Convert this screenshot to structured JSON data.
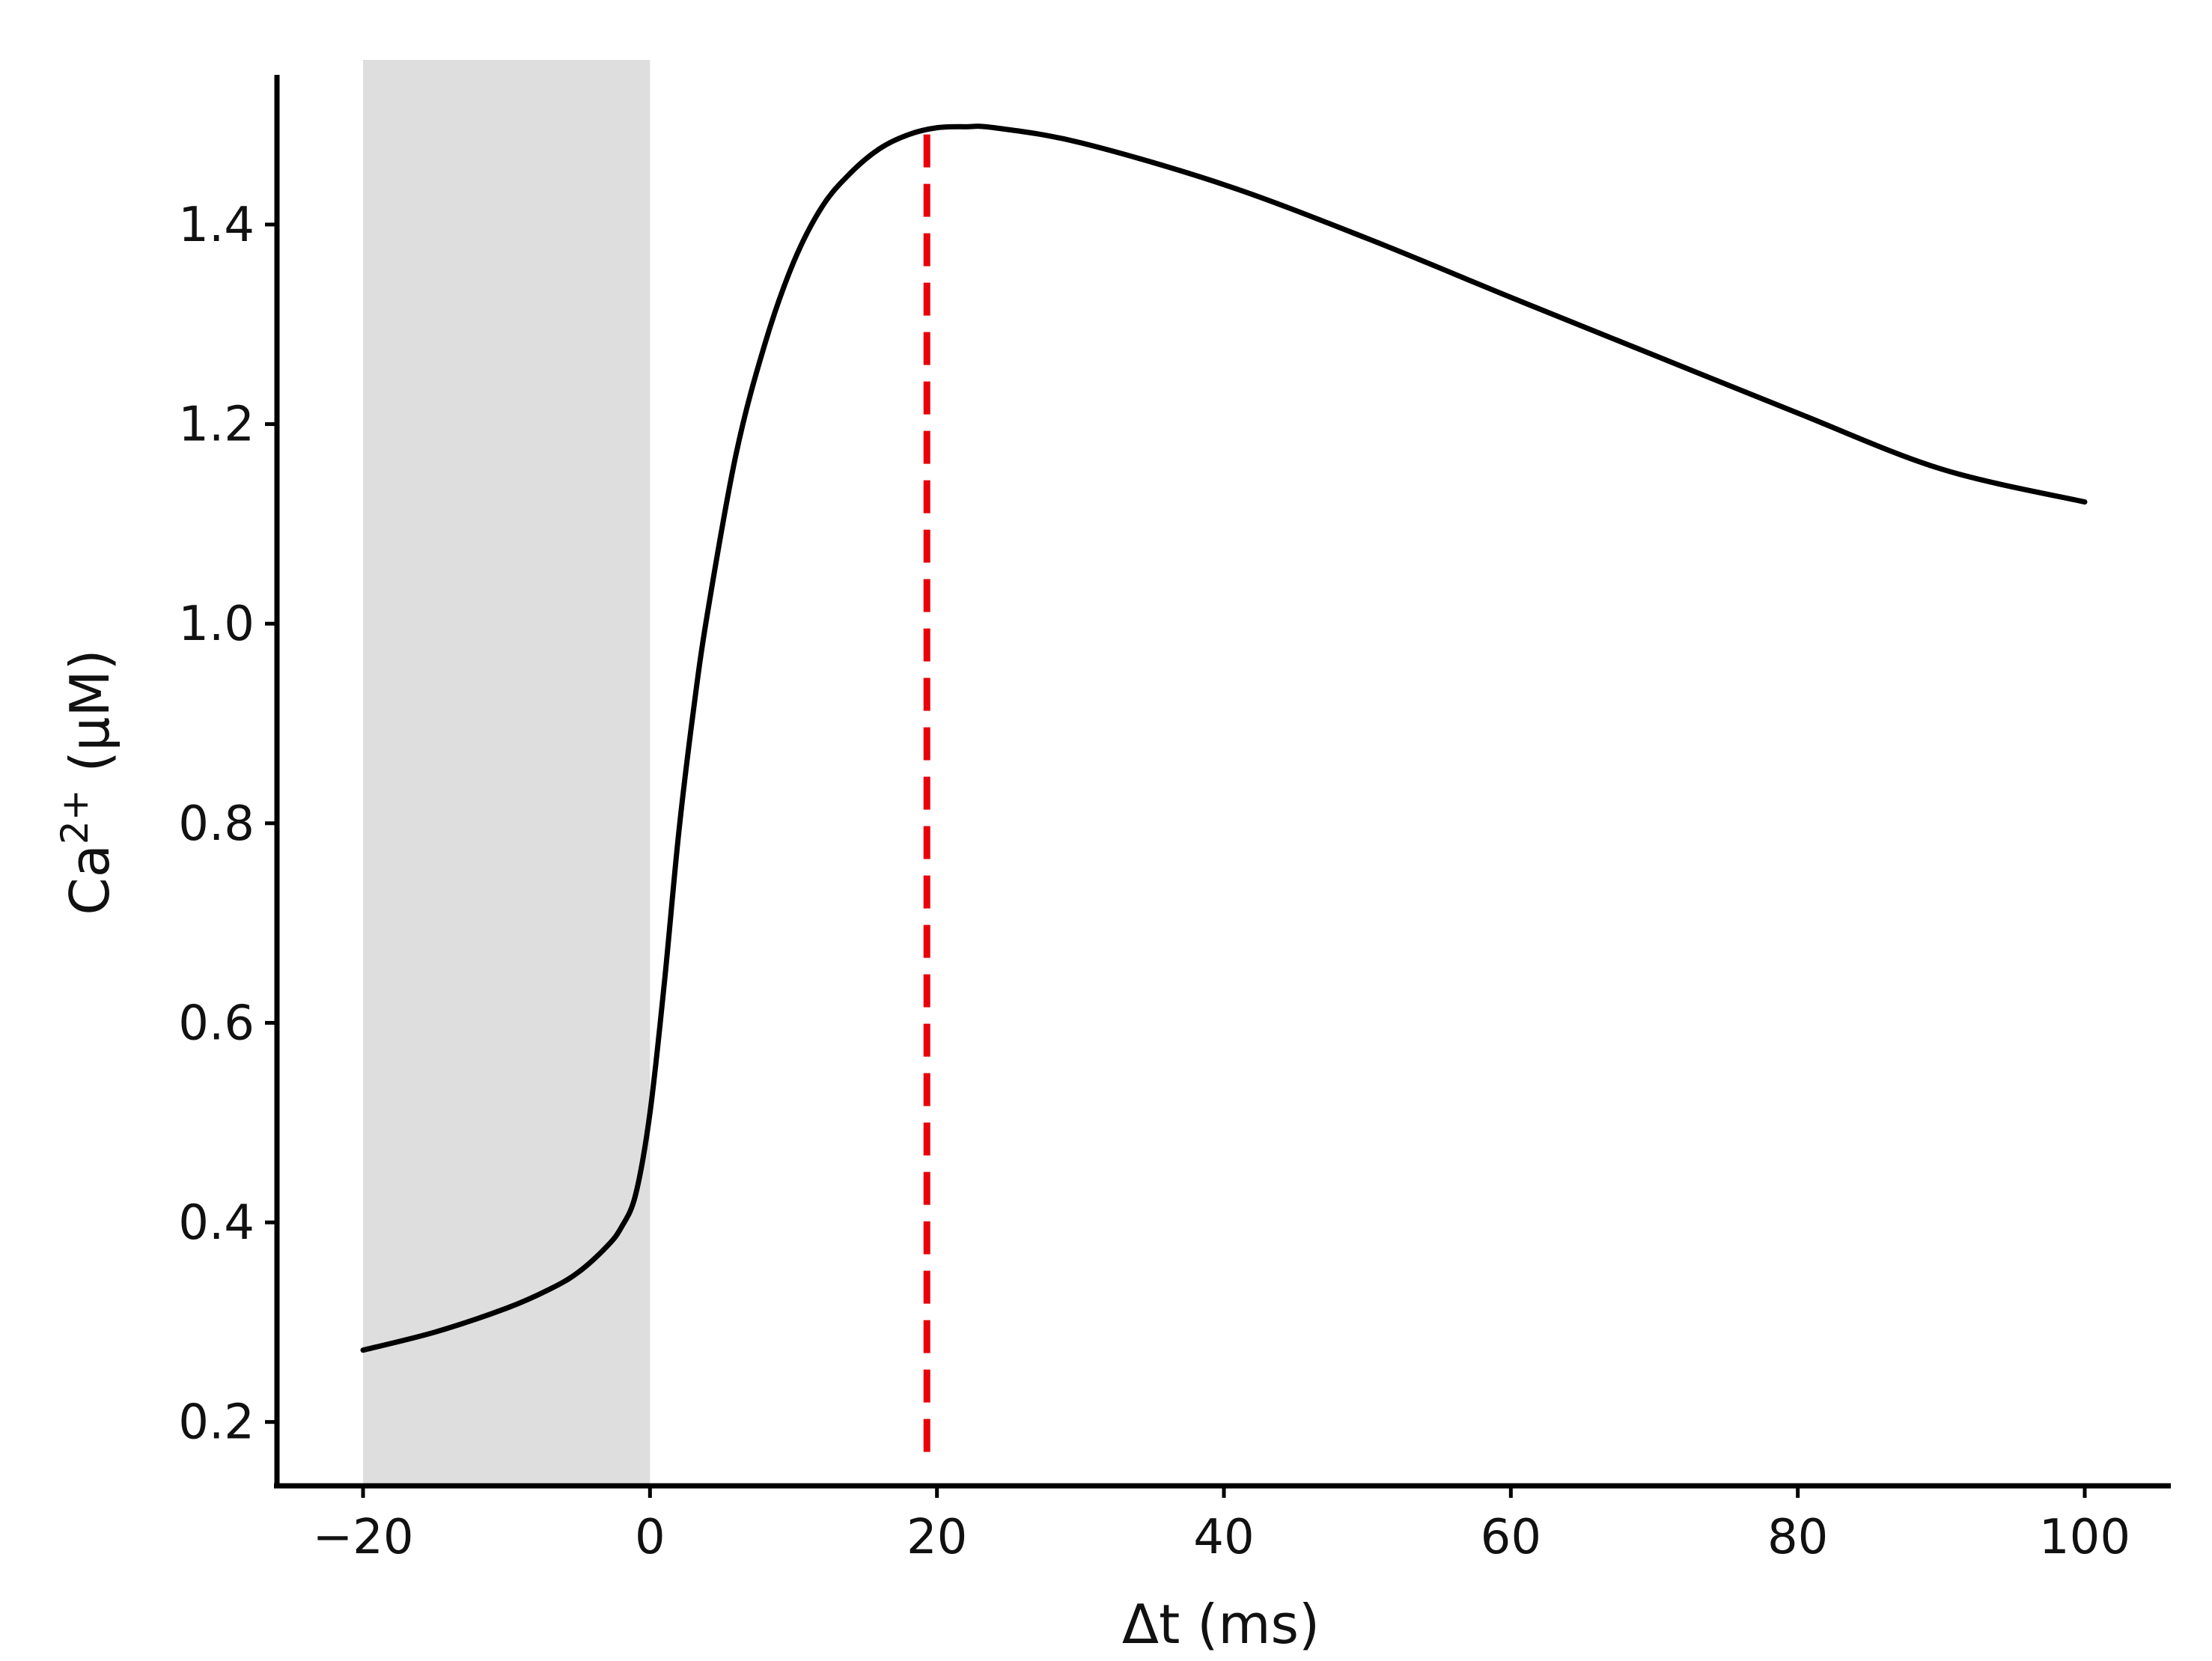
{
  "chart_data": {
    "type": "line",
    "title": "",
    "xlabel": "Δt (ms)",
    "ylabel_base": "Ca",
    "ylabel_sup": "2+",
    "ylabel_unit": " (μM)",
    "xlim": [
      -26,
      106
    ],
    "ylim": [
      0.136,
      1.565
    ],
    "xticks": [
      -20,
      0,
      20,
      40,
      60,
      80,
      100
    ],
    "xtick_labels": [
      "−20",
      "0",
      "20",
      "40",
      "60",
      "80",
      "100"
    ],
    "yticks": [
      0.2,
      0.4,
      0.6,
      0.8,
      1.0,
      1.2,
      1.4
    ],
    "ytick_labels": [
      "0.2",
      "0.4",
      "0.6",
      "0.8",
      "1.0",
      "1.2",
      "1.4"
    ],
    "grid": false,
    "shaded_region": {
      "x_start": -20,
      "x_end": 0,
      "color": "#dedede"
    },
    "vline": {
      "x": 19.3,
      "y_start": 0.17,
      "y_end": 1.5,
      "color": "#e8000b",
      "style": "dashed"
    },
    "series": [
      {
        "color": "#000000",
        "x": [
          -20,
          -15,
          -10,
          -7,
          -5,
          -3,
          -2,
          -1,
          0,
          1,
          2,
          3,
          4,
          6,
          8,
          10,
          12,
          14,
          16,
          18,
          20,
          22,
          24,
          30,
          40,
          50,
          60,
          70,
          80,
          90,
          100
        ],
        "y": [
          0.272,
          0.29,
          0.314,
          0.333,
          0.35,
          0.376,
          0.395,
          0.428,
          0.51,
          0.64,
          0.79,
          0.91,
          1.01,
          1.17,
          1.28,
          1.362,
          1.418,
          1.452,
          1.476,
          1.49,
          1.497,
          1.498,
          1.497,
          1.482,
          1.44,
          1.386,
          1.327,
          1.269,
          1.211,
          1.155,
          1.122
        ]
      }
    ]
  }
}
